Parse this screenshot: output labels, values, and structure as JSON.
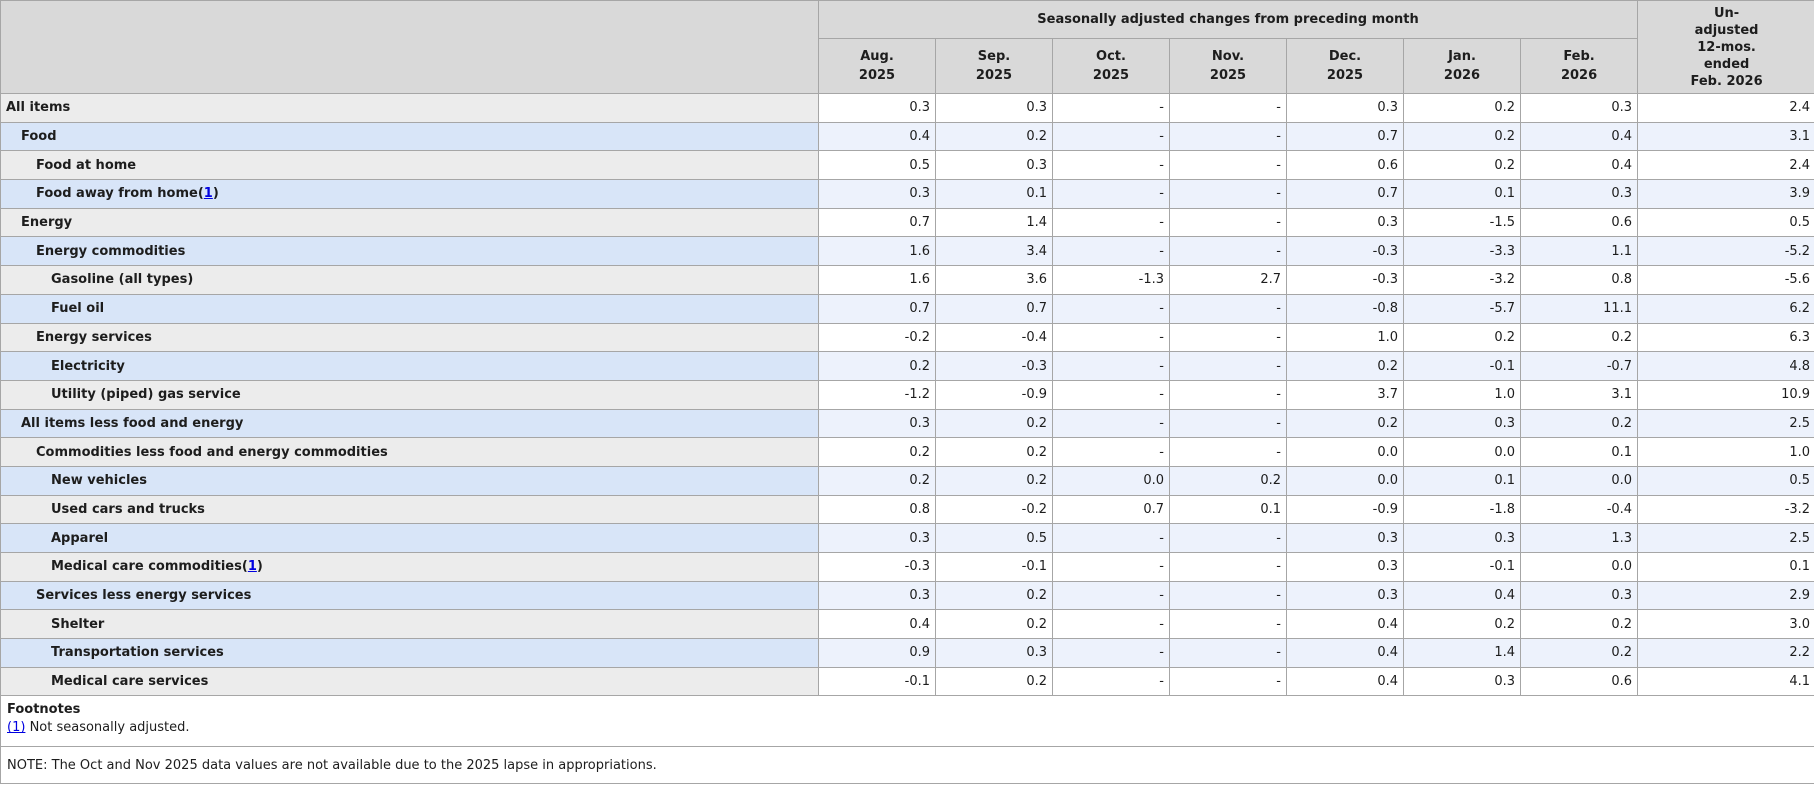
{
  "colors": {
    "header_bg": "#d9d9d9",
    "stub_gray": "#ececec",
    "stub_blue": "#d8e5f8",
    "data_blue": "#edf2fc",
    "data_white": "#ffffff",
    "border": "#a6a6a6",
    "text": "#1d1d1d",
    "link": "#0000e0"
  },
  "table": {
    "header": {
      "group_title": "Seasonally adjusted changes from preceding month",
      "months": [
        {
          "abbr": "Aug.",
          "year": "2025"
        },
        {
          "abbr": "Sep.",
          "year": "2025"
        },
        {
          "abbr": "Oct.",
          "year": "2025"
        },
        {
          "abbr": "Nov.",
          "year": "2025"
        },
        {
          "abbr": "Dec.",
          "year": "2025"
        },
        {
          "abbr": "Jan.",
          "year": "2026"
        },
        {
          "abbr": "Feb.",
          "year": "2026"
        }
      ],
      "unadjusted_lines": [
        "Un-",
        "adjusted",
        "12-mos.",
        "ended",
        "Feb. 2026"
      ]
    },
    "rows": [
      {
        "label": "All items",
        "indent": 0,
        "footnote_ref": null,
        "values": [
          "0.3",
          "0.3",
          "-",
          "-",
          "0.3",
          "0.2",
          "0.3",
          "2.4"
        ]
      },
      {
        "label": "Food",
        "indent": 1,
        "footnote_ref": null,
        "values": [
          "0.4",
          "0.2",
          "-",
          "-",
          "0.7",
          "0.2",
          "0.4",
          "3.1"
        ]
      },
      {
        "label": "Food at home",
        "indent": 2,
        "footnote_ref": null,
        "values": [
          "0.5",
          "0.3",
          "-",
          "-",
          "0.6",
          "0.2",
          "0.4",
          "2.4"
        ]
      },
      {
        "label": "Food away from home",
        "indent": 2,
        "footnote_ref": "1",
        "values": [
          "0.3",
          "0.1",
          "-",
          "-",
          "0.7",
          "0.1",
          "0.3",
          "3.9"
        ]
      },
      {
        "label": "Energy",
        "indent": 1,
        "footnote_ref": null,
        "values": [
          "0.7",
          "1.4",
          "-",
          "-",
          "0.3",
          "-1.5",
          "0.6",
          "0.5"
        ]
      },
      {
        "label": "Energy commodities",
        "indent": 2,
        "footnote_ref": null,
        "values": [
          "1.6",
          "3.4",
          "-",
          "-",
          "-0.3",
          "-3.3",
          "1.1",
          "-5.2"
        ]
      },
      {
        "label": "Gasoline (all types)",
        "indent": 3,
        "footnote_ref": null,
        "values": [
          "1.6",
          "3.6",
          "-1.3",
          "2.7",
          "-0.3",
          "-3.2",
          "0.8",
          "-5.6"
        ]
      },
      {
        "label": "Fuel oil",
        "indent": 3,
        "footnote_ref": null,
        "values": [
          "0.7",
          "0.7",
          "-",
          "-",
          "-0.8",
          "-5.7",
          "11.1",
          "6.2"
        ]
      },
      {
        "label": "Energy services",
        "indent": 2,
        "footnote_ref": null,
        "values": [
          "-0.2",
          "-0.4",
          "-",
          "-",
          "1.0",
          "0.2",
          "0.2",
          "6.3"
        ]
      },
      {
        "label": "Electricity",
        "indent": 3,
        "footnote_ref": null,
        "values": [
          "0.2",
          "-0.3",
          "-",
          "-",
          "0.2",
          "-0.1",
          "-0.7",
          "4.8"
        ]
      },
      {
        "label": "Utility (piped) gas service",
        "indent": 3,
        "footnote_ref": null,
        "values": [
          "-1.2",
          "-0.9",
          "-",
          "-",
          "3.7",
          "1.0",
          "3.1",
          "10.9"
        ]
      },
      {
        "label": "All items less food and energy",
        "indent": 1,
        "footnote_ref": null,
        "values": [
          "0.3",
          "0.2",
          "-",
          "-",
          "0.2",
          "0.3",
          "0.2",
          "2.5"
        ]
      },
      {
        "label": "Commodities less food and energy commodities",
        "indent": 2,
        "footnote_ref": null,
        "values": [
          "0.2",
          "0.2",
          "-",
          "-",
          "0.0",
          "0.0",
          "0.1",
          "1.0"
        ]
      },
      {
        "label": "New vehicles",
        "indent": 3,
        "footnote_ref": null,
        "values": [
          "0.2",
          "0.2",
          "0.0",
          "0.2",
          "0.0",
          "0.1",
          "0.0",
          "0.5"
        ]
      },
      {
        "label": "Used cars and trucks",
        "indent": 3,
        "footnote_ref": null,
        "values": [
          "0.8",
          "-0.2",
          "0.7",
          "0.1",
          "-0.9",
          "-1.8",
          "-0.4",
          "-3.2"
        ]
      },
      {
        "label": "Apparel",
        "indent": 3,
        "footnote_ref": null,
        "values": [
          "0.3",
          "0.5",
          "-",
          "-",
          "0.3",
          "0.3",
          "1.3",
          "2.5"
        ]
      },
      {
        "label": "Medical care commodities",
        "indent": 3,
        "footnote_ref": "1",
        "values": [
          "-0.3",
          "-0.1",
          "-",
          "-",
          "0.3",
          "-0.1",
          "0.0",
          "0.1"
        ]
      },
      {
        "label": "Services less energy services",
        "indent": 2,
        "footnote_ref": null,
        "values": [
          "0.3",
          "0.2",
          "-",
          "-",
          "0.3",
          "0.4",
          "0.3",
          "2.9"
        ]
      },
      {
        "label": "Shelter",
        "indent": 3,
        "footnote_ref": null,
        "values": [
          "0.4",
          "0.2",
          "-",
          "-",
          "0.4",
          "0.2",
          "0.2",
          "3.0"
        ]
      },
      {
        "label": "Transportation services",
        "indent": 3,
        "footnote_ref": null,
        "values": [
          "0.9",
          "0.3",
          "-",
          "-",
          "0.4",
          "1.4",
          "0.2",
          "2.2"
        ]
      },
      {
        "label": "Medical care services",
        "indent": 3,
        "footnote_ref": null,
        "values": [
          "-0.1",
          "0.2",
          "-",
          "-",
          "0.4",
          "0.3",
          "0.6",
          "4.1"
        ]
      }
    ],
    "footnotes": {
      "title": "Footnotes",
      "items": [
        {
          "marker": "(1)",
          "text": "Not seasonally adjusted."
        }
      ]
    },
    "note": "NOTE: The Oct and Nov 2025 data values are not available due to the 2025 lapse in appropriations."
  }
}
